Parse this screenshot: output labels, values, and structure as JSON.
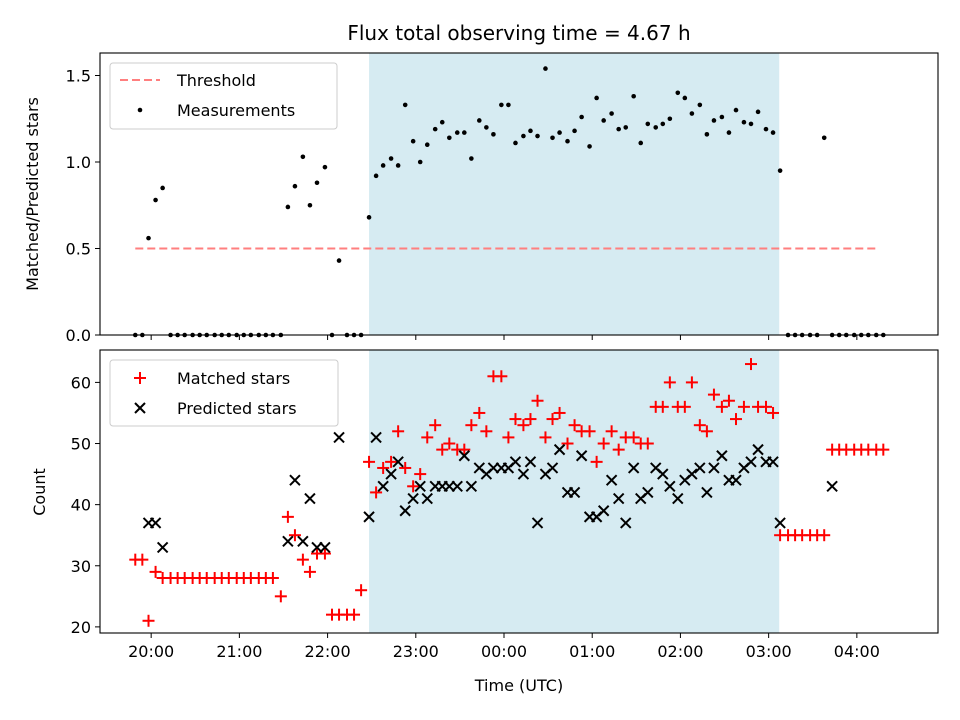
{
  "title": "Flux total observing time = 4.67 h",
  "colors": {
    "shade": "#add8e6",
    "threshold": "#ff7f7f",
    "measurement": "#000000",
    "matched": "#ff0000",
    "predicted": "#000000"
  },
  "chart_data": [
    {
      "type": "scatter",
      "ylabel": "Matched/Predicted stars",
      "xlim": [
        19.42,
        28.92
      ],
      "ylim": [
        0,
        1.63
      ],
      "yticks": [
        "0.0",
        "0.5",
        "1.0",
        "1.5"
      ],
      "ytick_values": [
        0,
        0.5,
        1.0,
        1.5
      ],
      "shaded_region": [
        22.47,
        27.12
      ],
      "legend": {
        "location": "upper left",
        "entries": [
          "Threshold",
          "Measurements"
        ]
      },
      "threshold": {
        "name": "Threshold",
        "x": [
          19.82,
          28.25
        ],
        "y": [
          0.5,
          0.5
        ],
        "style": "dashed"
      },
      "measurements": {
        "name": "Measurements",
        "x": [
          19.82,
          19.9,
          19.97,
          20.05,
          20.13,
          20.22,
          20.3,
          20.38,
          20.47,
          20.55,
          20.63,
          20.72,
          20.8,
          20.88,
          20.97,
          21.05,
          21.13,
          21.22,
          21.3,
          21.38,
          21.47,
          21.55,
          21.63,
          21.72,
          21.8,
          21.88,
          21.97,
          22.05,
          22.13,
          22.22,
          22.3,
          22.38,
          22.47,
          22.55,
          22.63,
          22.72,
          22.8,
          22.88,
          22.97,
          23.05,
          23.13,
          23.22,
          23.3,
          23.38,
          23.47,
          23.55,
          23.63,
          23.72,
          23.8,
          23.88,
          23.97,
          24.05,
          24.13,
          24.22,
          24.3,
          24.38,
          24.47,
          24.55,
          24.63,
          24.72,
          24.8,
          24.88,
          24.97,
          25.05,
          25.13,
          25.22,
          25.3,
          25.38,
          25.47,
          25.55,
          25.63,
          25.72,
          25.8,
          25.88,
          25.97,
          26.05,
          26.13,
          26.22,
          26.3,
          26.38,
          26.47,
          26.55,
          26.63,
          26.72,
          26.8,
          26.88,
          26.97,
          27.05,
          27.13,
          27.22,
          27.3,
          27.38,
          27.47,
          27.55,
          27.63,
          27.72,
          27.8,
          27.88,
          27.97,
          28.05,
          28.13,
          28.22,
          28.3
        ],
        "y": [
          0,
          0,
          0.56,
          0.78,
          0.85,
          0,
          0,
          0,
          0,
          0,
          0,
          0,
          0,
          0,
          0,
          0,
          0,
          0,
          0,
          0,
          0,
          0.74,
          0.86,
          1.03,
          0.75,
          0.88,
          0.97,
          0,
          0.43,
          0,
          0,
          0,
          0.68,
          0.92,
          0.98,
          1.02,
          0.98,
          1.33,
          1.12,
          1.0,
          1.1,
          1.19,
          1.23,
          1.14,
          1.17,
          1.17,
          1.02,
          1.24,
          1.2,
          1.16,
          1.33,
          1.33,
          1.11,
          1.15,
          1.18,
          1.15,
          1.54,
          1.14,
          1.17,
          1.12,
          1.18,
          1.26,
          1.09,
          1.37,
          1.24,
          1.28,
          1.19,
          1.2,
          1.38,
          1.11,
          1.22,
          1.2,
          1.22,
          1.25,
          1.4,
          1.37,
          1.28,
          1.33,
          1.16,
          1.24,
          1.26,
          1.17,
          1.3,
          1.23,
          1.22,
          1.29,
          1.19,
          1.17,
          0.95,
          0,
          0,
          0,
          0,
          0,
          1.14,
          0,
          0,
          0,
          0,
          0,
          0,
          0,
          0
        ]
      }
    },
    {
      "type": "scatter",
      "xlabel": "Time (UTC)",
      "ylabel": "Count",
      "xlim": [
        19.42,
        28.92
      ],
      "ylim": [
        19.0,
        65.3
      ],
      "xticks": [
        "20:00",
        "21:00",
        "22:00",
        "23:00",
        "00:00",
        "01:00",
        "02:00",
        "03:00",
        "04:00"
      ],
      "xtick_values": [
        20,
        21,
        22,
        23,
        24,
        25,
        26,
        27,
        28
      ],
      "yticks": [
        "20",
        "30",
        "40",
        "50",
        "60"
      ],
      "ytick_values": [
        20,
        30,
        40,
        50,
        60
      ],
      "shaded_region": [
        22.47,
        27.12
      ],
      "legend": {
        "location": "upper left",
        "entries": [
          "Matched stars",
          "Predicted stars"
        ]
      },
      "matched": {
        "name": "Matched stars",
        "marker": "+",
        "x": [
          19.82,
          19.9,
          19.97,
          20.05,
          20.13,
          20.22,
          20.3,
          20.38,
          20.47,
          20.55,
          20.63,
          20.72,
          20.8,
          20.88,
          20.97,
          21.05,
          21.13,
          21.22,
          21.3,
          21.38,
          21.47,
          21.55,
          21.63,
          21.72,
          21.8,
          21.88,
          21.97,
          22.05,
          22.13,
          22.22,
          22.3,
          22.38,
          22.47,
          22.55,
          22.63,
          22.72,
          22.8,
          22.88,
          22.97,
          23.05,
          23.13,
          23.22,
          23.3,
          23.38,
          23.47,
          23.55,
          23.63,
          23.72,
          23.8,
          23.88,
          23.97,
          24.05,
          24.13,
          24.22,
          24.3,
          24.38,
          24.47,
          24.55,
          24.63,
          24.72,
          24.8,
          24.88,
          24.97,
          25.05,
          25.13,
          25.22,
          25.3,
          25.38,
          25.47,
          25.55,
          25.63,
          25.72,
          25.8,
          25.88,
          25.97,
          26.05,
          26.13,
          26.22,
          26.3,
          26.38,
          26.47,
          26.55,
          26.63,
          26.72,
          26.8,
          26.88,
          26.97,
          27.05,
          27.13,
          27.22,
          27.3,
          27.38,
          27.47,
          27.55,
          27.63,
          27.72,
          27.8,
          27.88,
          27.97,
          28.05,
          28.13,
          28.22,
          28.3
        ],
        "y": [
          31,
          31,
          21,
          29,
          28,
          28,
          28,
          28,
          28,
          28,
          28,
          28,
          28,
          28,
          28,
          28,
          28,
          28,
          28,
          28,
          25,
          38,
          35,
          31,
          29,
          32,
          32,
          22,
          22,
          22,
          22,
          26,
          47,
          42,
          46,
          47,
          52,
          46,
          43,
          45,
          51,
          53,
          49,
          50,
          49,
          49,
          53,
          55,
          52,
          61,
          61,
          51,
          54,
          53,
          54,
          57,
          51,
          54,
          55,
          50,
          53,
          52,
          52,
          47,
          50,
          52,
          49,
          51,
          51,
          50,
          50,
          56,
          56,
          60,
          56,
          56,
          60,
          53,
          52,
          58,
          56,
          57,
          54,
          56,
          63,
          56,
          56,
          55,
          35,
          35,
          35,
          35,
          35,
          35,
          35,
          49,
          49,
          49,
          49,
          49,
          49,
          49,
          49
        ]
      },
      "predicted": {
        "name": "Predicted stars",
        "marker": "x",
        "x": [
          19.97,
          20.05,
          20.13,
          21.55,
          21.63,
          21.72,
          21.8,
          21.88,
          21.97,
          22.13,
          22.47,
          22.55,
          22.63,
          22.72,
          22.8,
          22.88,
          22.97,
          23.05,
          23.13,
          23.22,
          23.3,
          23.38,
          23.47,
          23.55,
          23.63,
          23.72,
          23.8,
          23.88,
          23.97,
          24.05,
          24.13,
          24.22,
          24.3,
          24.38,
          24.47,
          24.55,
          24.63,
          24.72,
          24.8,
          24.88,
          24.97,
          25.05,
          25.13,
          25.22,
          25.3,
          25.38,
          25.47,
          25.55,
          25.63,
          25.72,
          25.8,
          25.88,
          25.97,
          26.05,
          26.13,
          26.22,
          26.3,
          26.38,
          26.47,
          26.55,
          26.63,
          26.72,
          26.8,
          26.88,
          26.97,
          27.05,
          27.13,
          27.72
        ],
        "y": [
          37,
          37,
          33,
          34,
          44,
          34,
          41,
          33,
          33,
          51,
          38,
          51,
          43,
          45,
          47,
          39,
          41,
          43,
          41,
          43,
          43,
          43,
          43,
          48,
          43,
          46,
          45,
          46,
          46,
          46,
          47,
          45,
          47,
          37,
          45,
          46,
          49,
          42,
          42,
          48,
          38,
          38,
          39,
          44,
          41,
          37,
          46,
          41,
          42,
          46,
          45,
          43,
          41,
          44,
          45,
          46,
          42,
          46,
          48,
          44,
          44,
          46,
          47,
          49,
          47,
          47,
          37,
          43
        ]
      }
    }
  ]
}
